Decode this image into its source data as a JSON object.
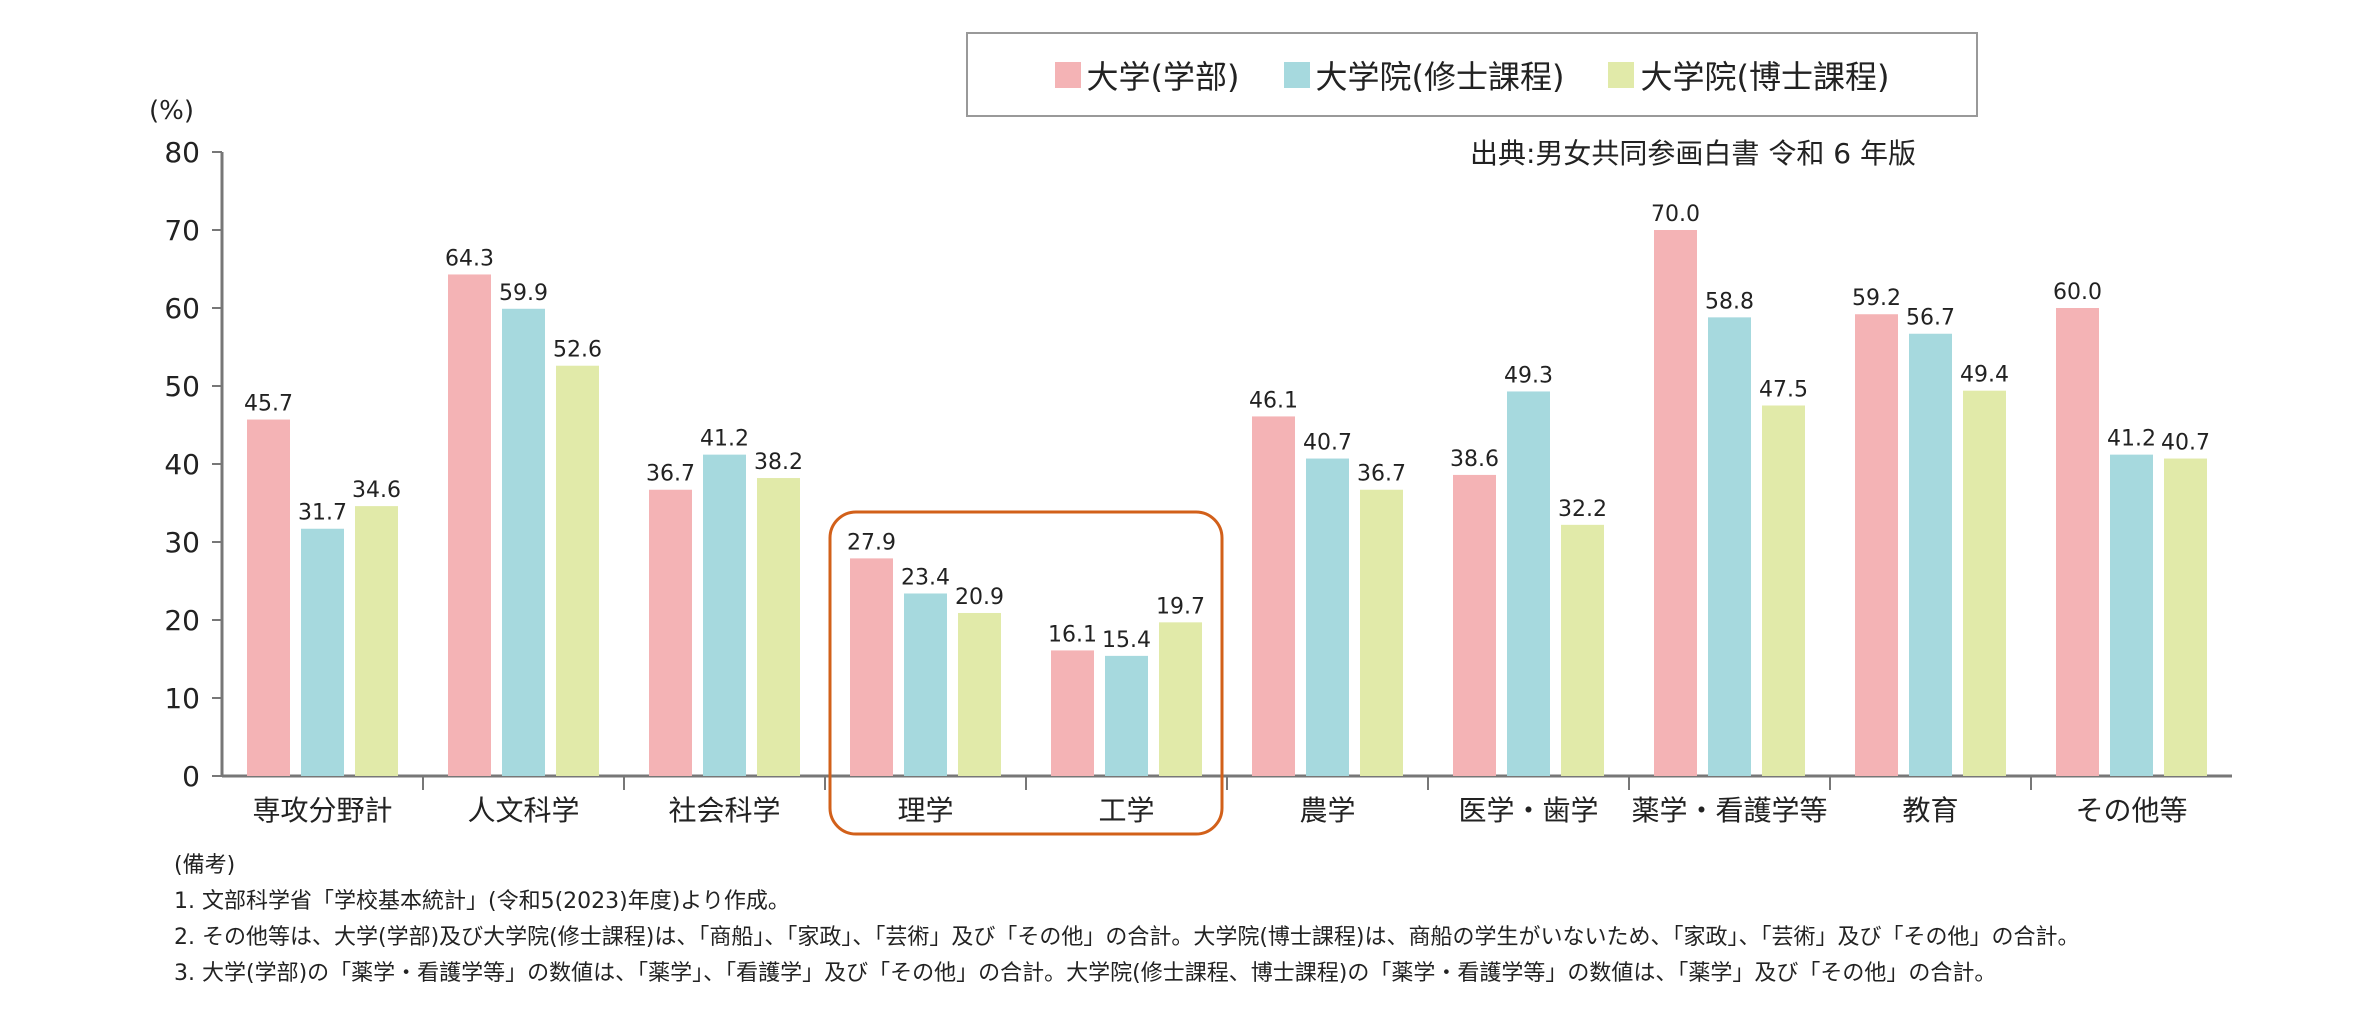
{
  "chart_data": {
    "type": "bar",
    "unit_label": "(%)",
    "ylim": [
      0,
      80
    ],
    "yticks": [
      0,
      10,
      20,
      30,
      40,
      50,
      60,
      70,
      80
    ],
    "categories": [
      "専攻分野計",
      "人文科学",
      "社会科学",
      "理学",
      "工学",
      "農学",
      "医学・歯学",
      "薬学・看護学等",
      "教育",
      "その他等"
    ],
    "series": [
      {
        "name": "大学(学部)",
        "color": "#f4b3b5",
        "values": [
          45.7,
          64.3,
          36.7,
          27.9,
          16.1,
          46.1,
          38.6,
          70.0,
          59.2,
          60.0
        ]
      },
      {
        "name": "大学院(修士課程)",
        "color": "#a6d9de",
        "values": [
          31.7,
          59.9,
          41.2,
          23.4,
          15.4,
          40.7,
          49.3,
          58.8,
          56.7,
          41.2
        ]
      },
      {
        "name": "大学院(博士課程)",
        "color": "#e1eaa9",
        "values": [
          34.6,
          52.6,
          38.2,
          20.9,
          19.7,
          36.7,
          32.2,
          47.5,
          49.4,
          40.7
        ]
      }
    ],
    "highlight_categories": [
      "理学",
      "工学"
    ],
    "highlight_color": "#d2601a",
    "legend_position": "top"
  },
  "source": "出典:男女共同参画白書 令和 6 年版",
  "notes": [
    "(備考)",
    "1. 文部科学省「学校基本統計」(令和5(2023)年度)より作成。",
    "2. その他等は、大学(学部)及び大学院(修士課程)は、「商船」、「家政」、「芸術」及び「その他」の合計。大学院(博士課程)は、商船の学生がいないため、「家政」、「芸術」及び「その他」の合計。",
    "3. 大学(学部)の「薬学・看護学等」の数値は、「薬学」、「看護学」及び「その他」の合計。大学院(修士課程、博士課程)の「薬学・看護学等」の数値は、「薬学」及び「その他」の合計。"
  ]
}
